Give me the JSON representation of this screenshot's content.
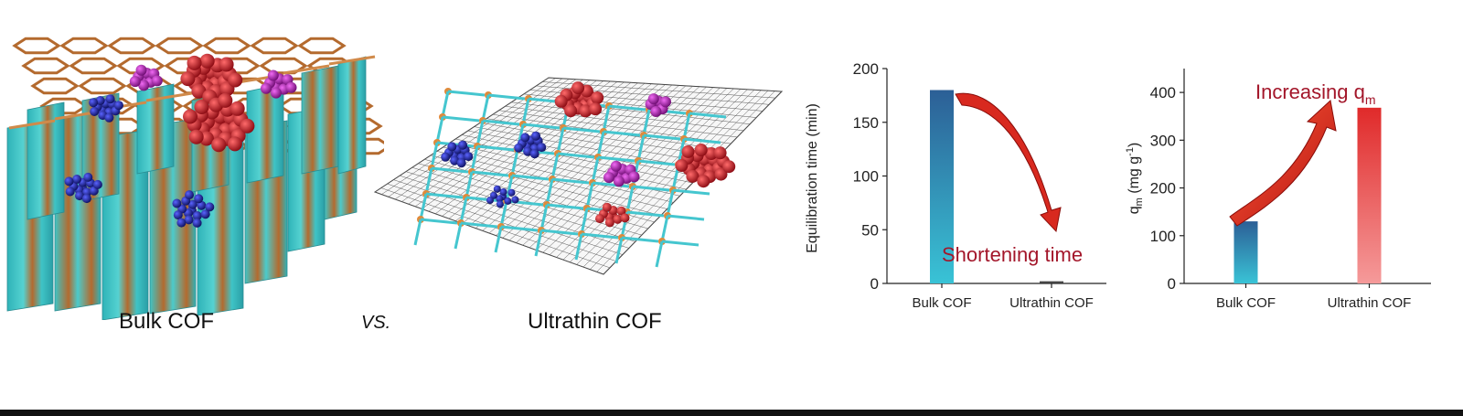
{
  "labels": {
    "bulk": "Bulk COF",
    "vs": "VS.",
    "ultrathin": "Ultrathin COF"
  },
  "annotations": {
    "shortening": "Shortening time",
    "increasing": "Increasing q",
    "increasing_sub": "m"
  },
  "colors": {
    "teal": "#3fc4c6",
    "copper": "#b46a2e",
    "red": "#c0141e",
    "magenta": "#a41ea8",
    "navy": "#1b1f8f",
    "arrow": "#d8291f",
    "annotation_text": "#a3162a"
  },
  "chart_data": [
    {
      "type": "bar",
      "categories": [
        "Bulk COF",
        "Ultrathin COF"
      ],
      "values": [
        180,
        2
      ],
      "ylabel": "Equilibration time (min)",
      "ylim": [
        0,
        200
      ],
      "yticks": [
        0,
        50,
        100,
        150,
        200
      ]
    },
    {
      "type": "bar",
      "categories": [
        "Bulk COF",
        "Ultrathin COF"
      ],
      "values": [
        130,
        368
      ],
      "ylabel": "q",
      "ylabel_sub": "m",
      "ylabel_unit": " (mg g",
      "ylabel_sup": "-1",
      "ylabel_end": ")",
      "ylim": [
        0,
        450
      ],
      "yticks": [
        0,
        100,
        200,
        300,
        400
      ]
    }
  ]
}
